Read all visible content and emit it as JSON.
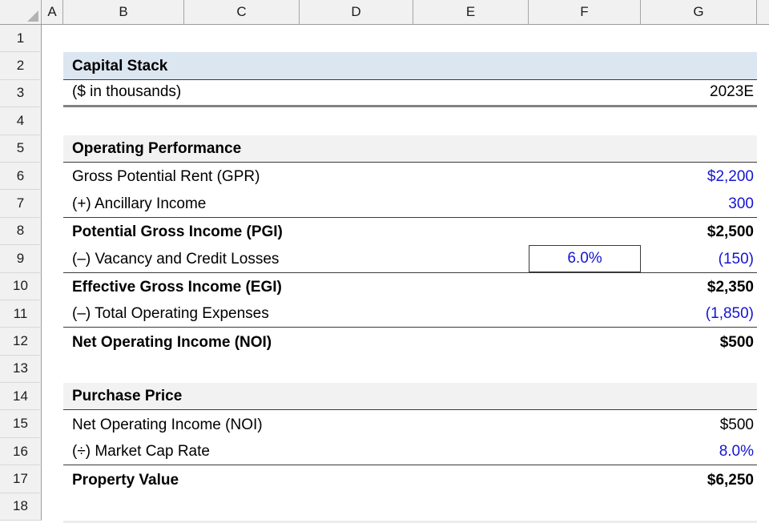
{
  "colors": {
    "input_blue": "#1414D2",
    "section_fill_blue": "#DCE6F1",
    "section_fill_gray": "#F2F2F2",
    "border_dark": "#3A3A3A",
    "border_thick_gray": "#828282",
    "header_fill": "#F1F1F1"
  },
  "columns": {
    "a": "A",
    "b": "B",
    "c": "C",
    "d": "D",
    "e": "E",
    "f": "F",
    "g": "G"
  },
  "sheet": {
    "title": "Capital Stack",
    "units_note": "($ in thousands)",
    "period_header": "2023E",
    "section_operating": "Operating Performance",
    "section_purchase": "Purchase Price"
  },
  "rows": [
    {
      "num": "1",
      "label": "",
      "value": ""
    },
    {
      "num": "2",
      "label": "Capital Stack",
      "value": ""
    },
    {
      "num": "3",
      "label": "($ in thousands)",
      "value": "2023E"
    },
    {
      "num": "4",
      "label": "",
      "value": ""
    },
    {
      "num": "5",
      "label": "Operating Performance",
      "value": ""
    },
    {
      "num": "6",
      "label": "Gross Potential Rent (GPR)",
      "value": "$2,200"
    },
    {
      "num": "7",
      "label": "(+) Ancillary Income",
      "value": "300"
    },
    {
      "num": "8",
      "label": "Potential Gross Income (PGI)",
      "value": "$2,500"
    },
    {
      "num": "9",
      "label": "(–) Vacancy and Credit Losses",
      "assumption": "6.0%",
      "value": "(150)"
    },
    {
      "num": "10",
      "label": "Effective Gross Income (EGI)",
      "value": "$2,350"
    },
    {
      "num": "11",
      "label": "(–) Total Operating Expenses",
      "value": "(1,850)"
    },
    {
      "num": "12",
      "label": "Net Operating Income (NOI)",
      "value": "$500"
    },
    {
      "num": "13",
      "label": "",
      "value": ""
    },
    {
      "num": "14",
      "label": "Purchase Price",
      "value": ""
    },
    {
      "num": "15",
      "label": "Net Operating Income (NOI)",
      "value": "$500"
    },
    {
      "num": "16",
      "label": "(÷) Market Cap Rate",
      "value": "8.0%"
    },
    {
      "num": "17",
      "label": "Property Value",
      "value": "$6,250"
    },
    {
      "num": "18",
      "label": "",
      "value": ""
    }
  ]
}
